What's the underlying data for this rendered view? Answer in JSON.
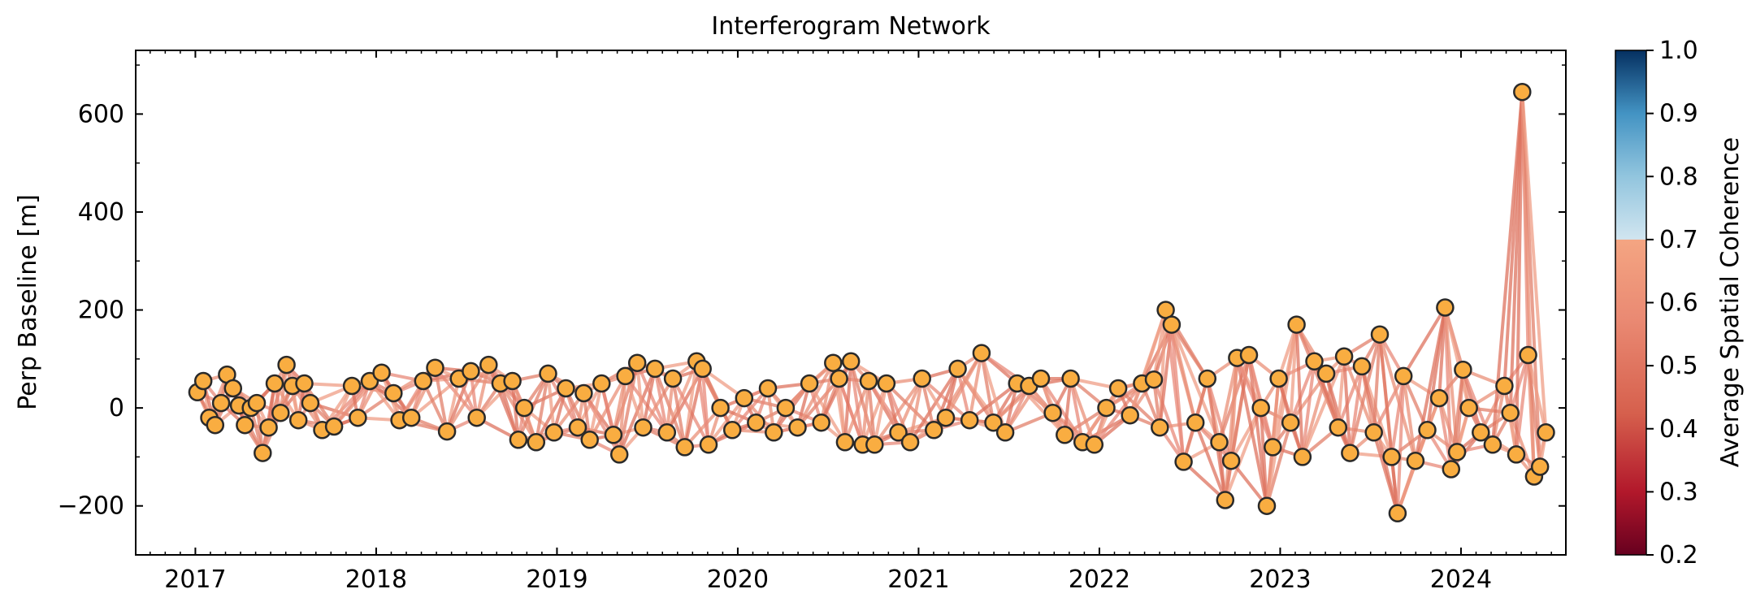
{
  "chart_data": {
    "type": "scatter",
    "title": "Interferogram Network",
    "xlabel": "",
    "ylabel": "Perp Baseline [m]",
    "xlim": [
      2016.67,
      2024.58
    ],
    "ylim": [
      -300,
      730
    ],
    "x_ticks": [
      2017,
      2018,
      2019,
      2020,
      2021,
      2022,
      2023,
      2024
    ],
    "x_tick_labels": [
      "2017",
      "2018",
      "2019",
      "2020",
      "2021",
      "2022",
      "2023",
      "2024"
    ],
    "y_ticks": [
      -200,
      0,
      200,
      400,
      600
    ],
    "y_tick_labels": [
      "−200",
      "0",
      "200",
      "400",
      "600"
    ],
    "grid": false,
    "marker_color": "#f9ad41",
    "marker_edge_color": "#2a2a2a",
    "edge_color": "#e07a68",
    "colorbar": {
      "label": "Average Spatial Coherence",
      "range": [
        0.2,
        1.0
      ],
      "ticks": [
        1.0,
        0.9,
        0.8,
        0.7,
        0.6,
        0.5,
        0.4,
        0.3,
        0.2
      ],
      "tick_labels": [
        "1.0",
        "0.9",
        "0.8",
        "0.7",
        "0.6",
        "0.5",
        "0.4",
        "0.3",
        "0.2"
      ],
      "colormap": "RdBu",
      "displayed_max": 0.7
    },
    "acquisitions": [
      {
        "date": "2017-01-05",
        "baseline": 32
      },
      {
        "date": "2017-01-17",
        "baseline": 55
      },
      {
        "date": "2017-01-29",
        "baseline": -20
      },
      {
        "date": "2017-02-10",
        "baseline": -35
      },
      {
        "date": "2017-02-22",
        "baseline": 10
      },
      {
        "date": "2017-03-06",
        "baseline": 68
      },
      {
        "date": "2017-03-18",
        "baseline": 40
      },
      {
        "date": "2017-03-30",
        "baseline": 5
      },
      {
        "date": "2017-04-11",
        "baseline": -35
      },
      {
        "date": "2017-04-23",
        "baseline": 0
      },
      {
        "date": "2017-05-05",
        "baseline": 10
      },
      {
        "date": "2017-05-17",
        "baseline": -92
      },
      {
        "date": "2017-05-29",
        "baseline": -40
      },
      {
        "date": "2017-06-10",
        "baseline": 50
      },
      {
        "date": "2017-06-22",
        "baseline": -10
      },
      {
        "date": "2017-07-04",
        "baseline": 88
      },
      {
        "date": "2017-07-16",
        "baseline": 45
      },
      {
        "date": "2017-07-28",
        "baseline": -25
      },
      {
        "date": "2017-08-09",
        "baseline": 50
      },
      {
        "date": "2017-08-21",
        "baseline": 10
      },
      {
        "date": "2017-09-14",
        "baseline": -45
      },
      {
        "date": "2017-10-08",
        "baseline": -38
      },
      {
        "date": "2017-11-13",
        "baseline": 45
      },
      {
        "date": "2017-11-25",
        "baseline": -20
      },
      {
        "date": "2017-12-19",
        "baseline": 55
      },
      {
        "date": "2018-01-12",
        "baseline": 72
      },
      {
        "date": "2018-02-05",
        "baseline": 30
      },
      {
        "date": "2018-02-17",
        "baseline": -25
      },
      {
        "date": "2018-03-13",
        "baseline": -20
      },
      {
        "date": "2018-04-06",
        "baseline": 55
      },
      {
        "date": "2018-04-30",
        "baseline": 82
      },
      {
        "date": "2018-05-24",
        "baseline": -48
      },
      {
        "date": "2018-06-17",
        "baseline": 60
      },
      {
        "date": "2018-07-11",
        "baseline": 75
      },
      {
        "date": "2018-07-23",
        "baseline": -20
      },
      {
        "date": "2018-08-16",
        "baseline": 88
      },
      {
        "date": "2018-09-09",
        "baseline": 50
      },
      {
        "date": "2018-10-03",
        "baseline": 55
      },
      {
        "date": "2018-10-15",
        "baseline": -65
      },
      {
        "date": "2018-10-27",
        "baseline": 0
      },
      {
        "date": "2018-11-20",
        "baseline": -70
      },
      {
        "date": "2018-12-14",
        "baseline": 70
      },
      {
        "date": "2018-12-26",
        "baseline": -50
      },
      {
        "date": "2019-01-19",
        "baseline": 40
      },
      {
        "date": "2019-02-12",
        "baseline": -40
      },
      {
        "date": "2019-02-24",
        "baseline": 30
      },
      {
        "date": "2019-03-08",
        "baseline": -65
      },
      {
        "date": "2019-04-01",
        "baseline": 50
      },
      {
        "date": "2019-04-25",
        "baseline": -55
      },
      {
        "date": "2019-05-07",
        "baseline": -95
      },
      {
        "date": "2019-05-19",
        "baseline": 65
      },
      {
        "date": "2019-06-12",
        "baseline": 92
      },
      {
        "date": "2019-06-24",
        "baseline": -40
      },
      {
        "date": "2019-07-18",
        "baseline": 80
      },
      {
        "date": "2019-08-11",
        "baseline": -50
      },
      {
        "date": "2019-08-23",
        "baseline": 60
      },
      {
        "date": "2019-09-16",
        "baseline": -80
      },
      {
        "date": "2019-10-10",
        "baseline": 95
      },
      {
        "date": "2019-10-22",
        "baseline": 80
      },
      {
        "date": "2019-11-03",
        "baseline": -75
      },
      {
        "date": "2019-11-27",
        "baseline": 0
      },
      {
        "date": "2019-12-21",
        "baseline": -45
      },
      {
        "date": "2020-01-14",
        "baseline": 20
      },
      {
        "date": "2020-02-07",
        "baseline": -30
      },
      {
        "date": "2020-03-02",
        "baseline": 40
      },
      {
        "date": "2020-03-14",
        "baseline": -50
      },
      {
        "date": "2020-04-07",
        "baseline": 0
      },
      {
        "date": "2020-05-01",
        "baseline": -40
      },
      {
        "date": "2020-05-25",
        "baseline": 50
      },
      {
        "date": "2020-06-18",
        "baseline": -30
      },
      {
        "date": "2020-07-12",
        "baseline": 92
      },
      {
        "date": "2020-07-24",
        "baseline": 60
      },
      {
        "date": "2020-08-05",
        "baseline": -70
      },
      {
        "date": "2020-08-17",
        "baseline": 95
      },
      {
        "date": "2020-09-10",
        "baseline": -75
      },
      {
        "date": "2020-09-22",
        "baseline": 55
      },
      {
        "date": "2020-10-04",
        "baseline": -75
      },
      {
        "date": "2020-10-28",
        "baseline": 50
      },
      {
        "date": "2020-11-21",
        "baseline": -50
      },
      {
        "date": "2020-12-15",
        "baseline": -70
      },
      {
        "date": "2021-01-08",
        "baseline": 60
      },
      {
        "date": "2021-02-01",
        "baseline": -45
      },
      {
        "date": "2021-02-25",
        "baseline": -20
      },
      {
        "date": "2021-03-21",
        "baseline": 80
      },
      {
        "date": "2021-04-14",
        "baseline": -25
      },
      {
        "date": "2021-05-08",
        "baseline": 112
      },
      {
        "date": "2021-06-01",
        "baseline": -30
      },
      {
        "date": "2021-06-25",
        "baseline": -50
      },
      {
        "date": "2021-07-19",
        "baseline": 50
      },
      {
        "date": "2021-08-12",
        "baseline": 45
      },
      {
        "date": "2021-09-05",
        "baseline": 60
      },
      {
        "date": "2021-09-29",
        "baseline": -10
      },
      {
        "date": "2021-10-23",
        "baseline": -55
      },
      {
        "date": "2021-11-04",
        "baseline": 60
      },
      {
        "date": "2021-11-28",
        "baseline": -70
      },
      {
        "date": "2021-12-22",
        "baseline": -75
      },
      {
        "date": "2022-01-15",
        "baseline": 0
      },
      {
        "date": "2022-02-08",
        "baseline": 40
      },
      {
        "date": "2022-03-04",
        "baseline": -15
      },
      {
        "date": "2022-03-28",
        "baseline": 50
      },
      {
        "date": "2022-04-21",
        "baseline": 58
      },
      {
        "date": "2022-05-03",
        "baseline": -40
      },
      {
        "date": "2022-05-15",
        "baseline": 200
      },
      {
        "date": "2022-05-27",
        "baseline": 170
      },
      {
        "date": "2022-06-20",
        "baseline": -110
      },
      {
        "date": "2022-07-14",
        "baseline": -30
      },
      {
        "date": "2022-08-07",
        "baseline": 60
      },
      {
        "date": "2022-08-31",
        "baseline": -70
      },
      {
        "date": "2022-09-12",
        "baseline": -188
      },
      {
        "date": "2022-09-24",
        "baseline": -108
      },
      {
        "date": "2022-10-06",
        "baseline": 102
      },
      {
        "date": "2022-10-30",
        "baseline": 108
      },
      {
        "date": "2022-11-23",
        "baseline": 0
      },
      {
        "date": "2022-12-05",
        "baseline": -200
      },
      {
        "date": "2022-12-17",
        "baseline": -80
      },
      {
        "date": "2022-12-29",
        "baseline": 60
      },
      {
        "date": "2023-01-22",
        "baseline": -30
      },
      {
        "date": "2023-02-03",
        "baseline": 170
      },
      {
        "date": "2023-02-15",
        "baseline": -100
      },
      {
        "date": "2023-03-11",
        "baseline": 95
      },
      {
        "date": "2023-04-04",
        "baseline": 70
      },
      {
        "date": "2023-04-28",
        "baseline": -40
      },
      {
        "date": "2023-05-10",
        "baseline": 105
      },
      {
        "date": "2023-05-22",
        "baseline": -92
      },
      {
        "date": "2023-06-15",
        "baseline": 85
      },
      {
        "date": "2023-07-09",
        "baseline": -50
      },
      {
        "date": "2023-07-21",
        "baseline": 150
      },
      {
        "date": "2023-08-14",
        "baseline": -100
      },
      {
        "date": "2023-08-26",
        "baseline": -215
      },
      {
        "date": "2023-09-07",
        "baseline": 65
      },
      {
        "date": "2023-10-01",
        "baseline": -108
      },
      {
        "date": "2023-10-25",
        "baseline": -45
      },
      {
        "date": "2023-11-18",
        "baseline": 20
      },
      {
        "date": "2023-11-30",
        "baseline": 205
      },
      {
        "date": "2023-12-12",
        "baseline": -125
      },
      {
        "date": "2023-12-24",
        "baseline": -90
      },
      {
        "date": "2024-01-05",
        "baseline": 78
      },
      {
        "date": "2024-01-17",
        "baseline": 0
      },
      {
        "date": "2024-02-10",
        "baseline": -50
      },
      {
        "date": "2024-03-05",
        "baseline": -75
      },
      {
        "date": "2024-03-29",
        "baseline": 45
      },
      {
        "date": "2024-04-10",
        "baseline": -10
      },
      {
        "date": "2024-04-22",
        "baseline": -95
      },
      {
        "date": "2024-05-04",
        "baseline": 645
      },
      {
        "date": "2024-05-16",
        "baseline": 108
      },
      {
        "date": "2024-05-28",
        "baseline": -140
      },
      {
        "date": "2024-06-09",
        "baseline": -120
      },
      {
        "date": "2024-06-21",
        "baseline": -50
      }
    ]
  }
}
